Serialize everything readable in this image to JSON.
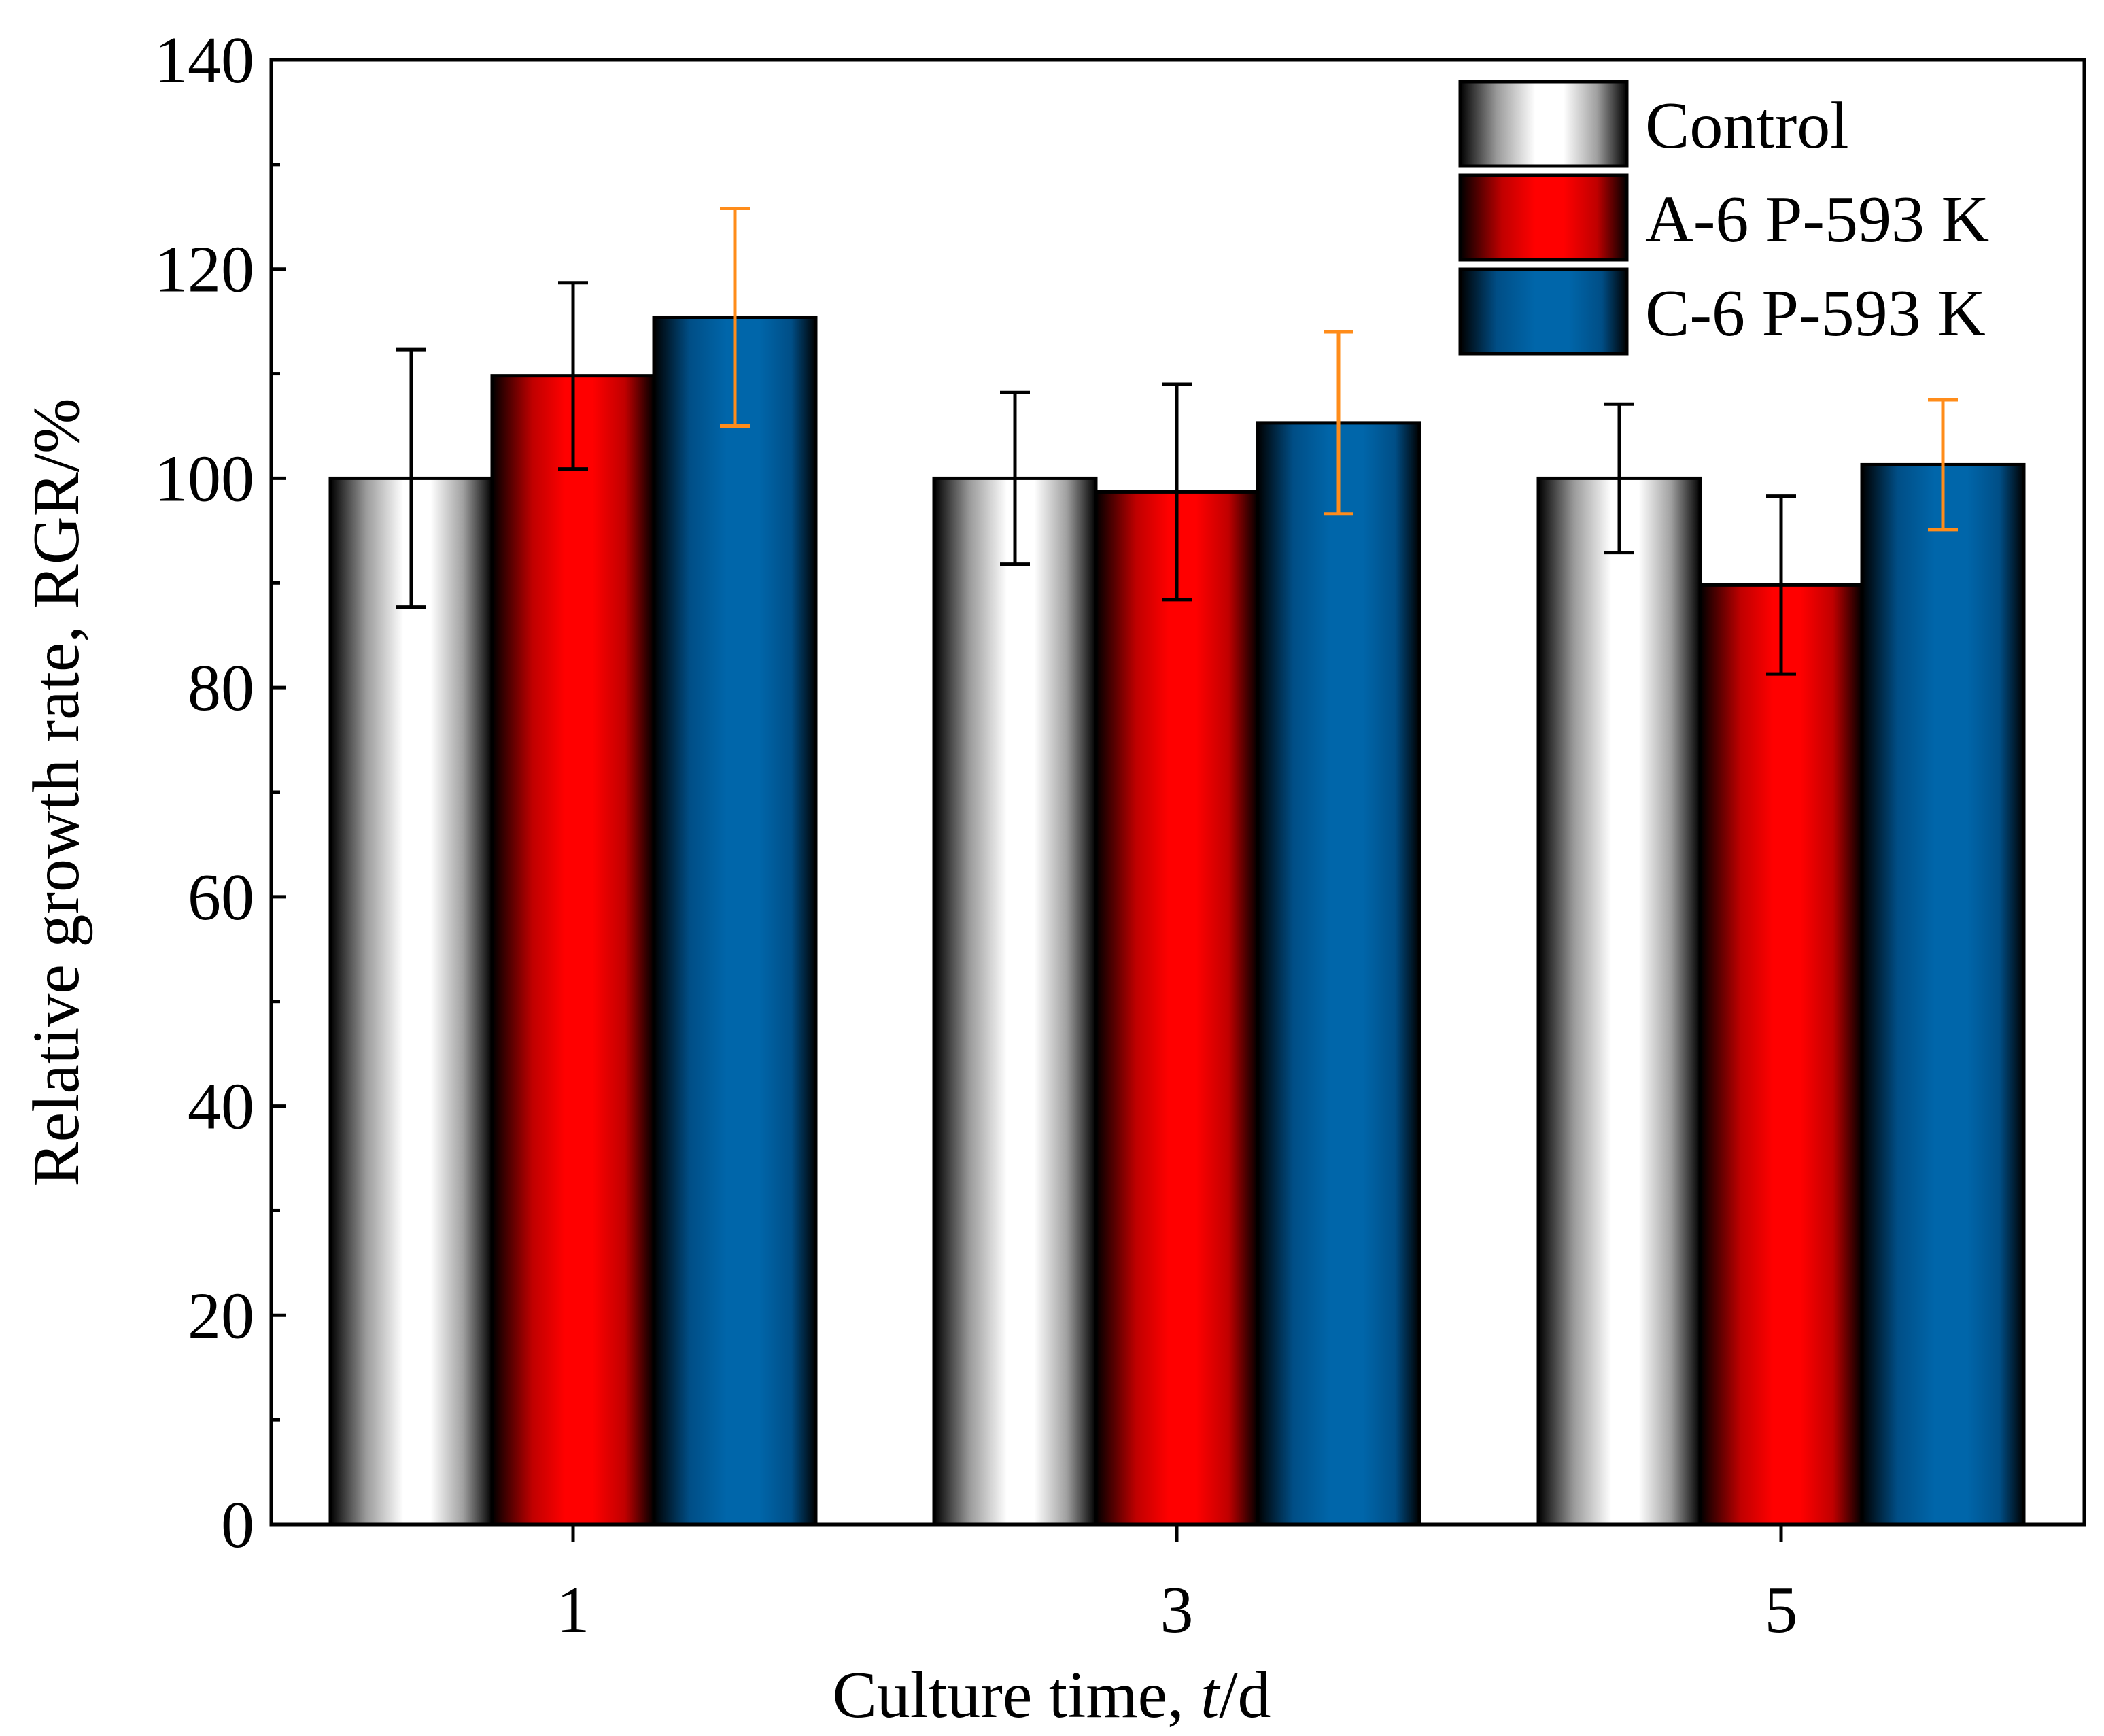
{
  "chart_data": {
    "type": "bar",
    "xlabel_prefix": "Culture time, ",
    "xlabel_var": "t",
    "xlabel_suffix": "/d",
    "ylabel": "Relative growth rate, RGR/%",
    "ylim": [
      0,
      140
    ],
    "yticks": [
      0,
      20,
      40,
      60,
      80,
      100,
      120,
      140
    ],
    "categories": [
      "1",
      "3",
      "5"
    ],
    "grid": false,
    "legend_position": "top-right",
    "series": [
      {
        "name": "Control",
        "color": "#ffffff",
        "edge_color": "#000000",
        "error_color": "#000000",
        "values": [
          100,
          100,
          100
        ],
        "errors": [
          12.3,
          8.2,
          7.1
        ]
      },
      {
        "name": "A-6 P-593 K",
        "color": "#ff0000",
        "edge_color": "#000000",
        "error_color": "#000000",
        "values": [
          109.8,
          98.7,
          89.8
        ],
        "errors": [
          8.9,
          10.3,
          8.5
        ]
      },
      {
        "name": "C-6 P-593 K",
        "color": "#0066aa",
        "edge_color": "#000000",
        "error_color": "#ff8c1a",
        "values": [
          115.4,
          105.3,
          101.3
        ],
        "errors": [
          10.4,
          8.7,
          6.2
        ]
      }
    ]
  }
}
